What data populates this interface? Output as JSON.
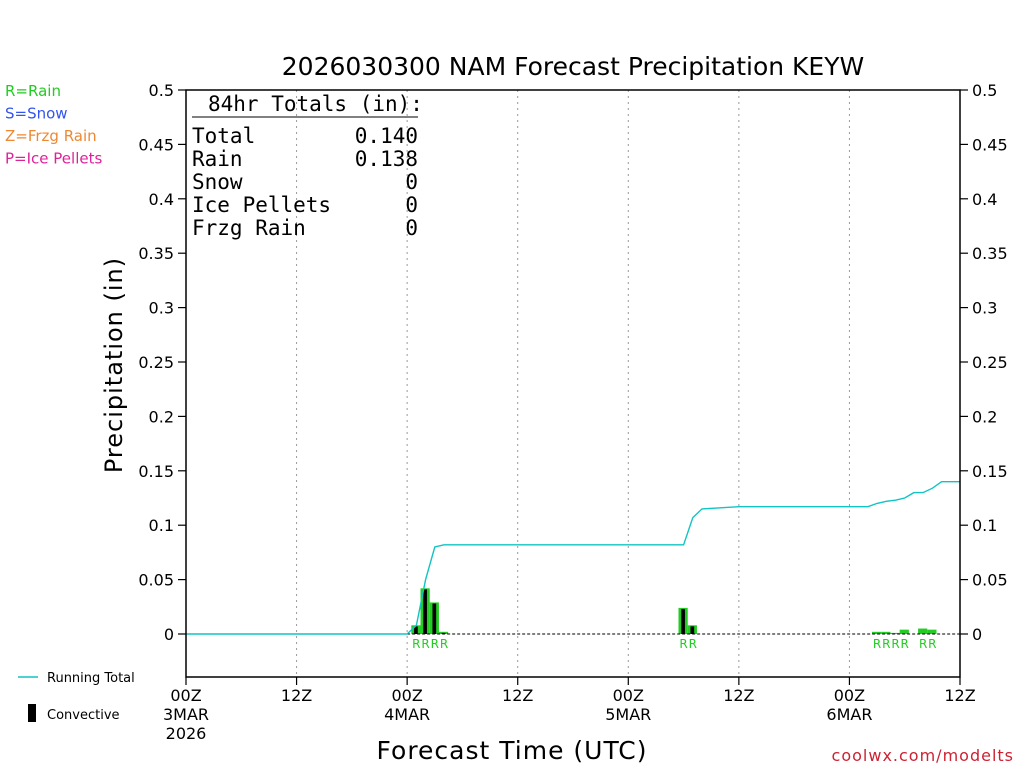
{
  "chart_data": {
    "type": "bar",
    "title": "2026030300 NAM Forecast Precipitation KEYW",
    "xlabel": "Forecast Time (UTC)",
    "ylabel": "Precipitation (in)",
    "ylim": [
      0,
      0.5
    ],
    "yticks": [
      "0",
      "0.05",
      "0.1",
      "0.15",
      "0.2",
      "0.25",
      "0.3",
      "0.35",
      "0.4",
      "0.45",
      "0.5"
    ],
    "xlim_hours": [
      0,
      84
    ],
    "xticks": [
      {
        "hour": 0,
        "line1": "00Z",
        "line2": "3MAR",
        "line3": "2026"
      },
      {
        "hour": 12,
        "line1": "12Z",
        "line2": "",
        "line3": ""
      },
      {
        "hour": 24,
        "line1": "00Z",
        "line2": "4MAR",
        "line3": ""
      },
      {
        "hour": 36,
        "line1": "12Z",
        "line2": "",
        "line3": ""
      },
      {
        "hour": 48,
        "line1": "00Z",
        "line2": "5MAR",
        "line3": ""
      },
      {
        "hour": 60,
        "line1": "12Z",
        "line2": "",
        "line3": ""
      },
      {
        "hour": 72,
        "line1": "00Z",
        "line2": "6MAR",
        "line3": ""
      },
      {
        "hour": 84,
        "line1": "12Z",
        "line2": "",
        "line3": ""
      }
    ],
    "precip_bars": [
      {
        "hour": 25,
        "rain": 0.008,
        "convective": 0.007
      },
      {
        "hour": 26,
        "rain": 0.042,
        "convective": 0.041
      },
      {
        "hour": 27,
        "rain": 0.029,
        "convective": 0.028
      },
      {
        "hour": 28,
        "rain": 0.002,
        "convective": 0.001
      },
      {
        "hour": 54,
        "rain": 0.024,
        "convective": 0.023
      },
      {
        "hour": 55,
        "rain": 0.008,
        "convective": 0.007
      },
      {
        "hour": 75,
        "rain": 0.002,
        "convective": 0.0
      },
      {
        "hour": 76,
        "rain": 0.002,
        "convective": 0.0
      },
      {
        "hour": 77,
        "rain": 0.001,
        "convective": 0.0
      },
      {
        "hour": 78,
        "rain": 0.004,
        "convective": 0.0
      },
      {
        "hour": 80,
        "rain": 0.005,
        "convective": 0.0
      },
      {
        "hour": 81,
        "rain": 0.004,
        "convective": 0.0
      }
    ],
    "running_total": {
      "name": "Running Total",
      "hours": [
        0,
        24,
        25,
        26,
        27,
        28,
        54,
        55,
        56,
        58,
        60,
        74,
        75,
        76,
        77,
        78,
        79,
        80,
        81,
        82,
        84
      ],
      "values": [
        0,
        0,
        0.008,
        0.05,
        0.08,
        0.082,
        0.082,
        0.107,
        0.115,
        0.116,
        0.117,
        0.117,
        0.12,
        0.122,
        0.123,
        0.125,
        0.13,
        0.13,
        0.134,
        0.14,
        0.14
      ]
    },
    "ptype_labels": [
      {
        "hour": 25,
        "label": "R"
      },
      {
        "hour": 26,
        "label": "R"
      },
      {
        "hour": 27,
        "label": "R"
      },
      {
        "hour": 28,
        "label": "R"
      },
      {
        "hour": 54,
        "label": "R"
      },
      {
        "hour": 55,
        "label": "R"
      },
      {
        "hour": 75,
        "label": "R"
      },
      {
        "hour": 76,
        "label": "R"
      },
      {
        "hour": 77,
        "label": "R"
      },
      {
        "hour": 78,
        "label": "R"
      },
      {
        "hour": 80,
        "label": "R"
      },
      {
        "hour": 81,
        "label": "R"
      }
    ],
    "legend": "left",
    "grid": "vertical dotted"
  },
  "ptype_legend": [
    {
      "text": "R=Rain",
      "color": "#22cc22"
    },
    {
      "text": "S=Snow",
      "color": "#3355ee"
    },
    {
      "text": "Z=Frzg Rain",
      "color": "#ee8833"
    },
    {
      "text": "P=Ice Pellets",
      "color": "#dd2299"
    }
  ],
  "series_legend": {
    "running_total": "Running Total",
    "convective": "Convective"
  },
  "totals": {
    "header": "84hr Totals (in):",
    "rows": [
      {
        "label": "Total",
        "value": "0.140"
      },
      {
        "label": "Rain",
        "value": "0.138"
      },
      {
        "label": "Snow",
        "value": "0"
      },
      {
        "label": "Ice Pellets",
        "value": "0"
      },
      {
        "label": "Frzg Rain",
        "value": "0"
      }
    ]
  },
  "colors": {
    "running_total": "#11c4c4",
    "rain": "#22cc22",
    "convective": "#000000",
    "rain_label": "#22cc22"
  },
  "credit": "coolwx.com/modelts",
  "credit_color": "#cc2233"
}
